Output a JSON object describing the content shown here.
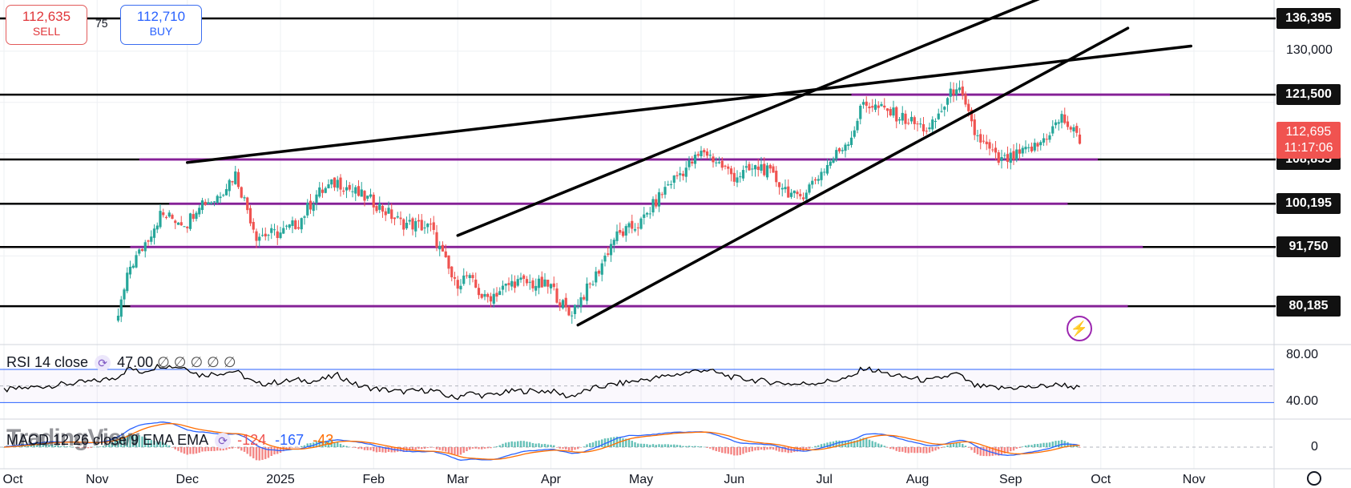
{
  "trade": {
    "sell_price": "112,635",
    "sell_label": "SELL",
    "buy_price": "112,710",
    "buy_label": "BUY",
    "spread": "75"
  },
  "price_tags": [
    {
      "value": "136,395",
      "price": 136395
    },
    {
      "value": "121,500",
      "price": 121500
    },
    {
      "value": "108,855",
      "price": 108855
    },
    {
      "value": "100,195",
      "price": 100195
    },
    {
      "value": "91,750",
      "price": 91750
    },
    {
      "value": "80,185",
      "price": 80185
    }
  ],
  "current_price": {
    "value": "112,695",
    "countdown": "11:17:06",
    "price": 112695
  },
  "price_axis_labels": [
    {
      "text": "130,000",
      "price": 130000
    }
  ],
  "rsi": {
    "legend_name": "RSI 14 close",
    "legend_value": "47.00",
    "legend_extra": "∅ ∅ ∅ ∅ ∅",
    "axis_labels": [
      "80.00",
      "40.00"
    ]
  },
  "macd": {
    "legend_name": "MACD 12 26 close 9 EMA EMA",
    "hist_value": "-124",
    "macd_value": "-167",
    "signal_value": "-43",
    "axis_label": "0"
  },
  "watermark": "TradingView",
  "colors": {
    "up": "#26a69a",
    "down": "#ef5350",
    "purple": "#9c27b0",
    "macd": "#2962ff",
    "signal": "#ff6d00",
    "band": "#2962ff"
  },
  "icons": {
    "flash": "flash-icon",
    "settings": "gear-icon",
    "cycle": "cycle-icon"
  },
  "chart_data": {
    "type": "candlestick",
    "title": "",
    "x": [
      "2024-10-01",
      "2024-10-15",
      "2024-11-01",
      "2024-11-07",
      "2024-11-12",
      "2024-11-15",
      "2024-11-22",
      "2024-12-01",
      "2024-12-05",
      "2024-12-10",
      "2024-12-17",
      "2024-12-24",
      "2025-01-01",
      "2025-01-07",
      "2025-01-13",
      "2025-01-20",
      "2025-01-27",
      "2025-02-01",
      "2025-02-10",
      "2025-02-20",
      "2025-02-28",
      "2025-03-04",
      "2025-03-10",
      "2025-03-20",
      "2025-04-01",
      "2025-04-07",
      "2025-04-15",
      "2025-04-22",
      "2025-05-01",
      "2025-05-10",
      "2025-05-22",
      "2025-06-01",
      "2025-06-10",
      "2025-06-22",
      "2025-07-01",
      "2025-07-10",
      "2025-07-14",
      "2025-07-25",
      "2025-08-05",
      "2025-08-14",
      "2025-08-20",
      "2025-08-28",
      "2025-09-01",
      "2025-09-10",
      "2025-09-18",
      "2025-09-24"
    ],
    "close": [
      62000,
      66000,
      69000,
      76000,
      88000,
      90500,
      98000,
      96500,
      100500,
      101000,
      106000,
      94000,
      94500,
      96500,
      102000,
      104500,
      102000,
      100500,
      96500,
      95500,
      84500,
      86000,
      81500,
      85000,
      84000,
      78500,
      85000,
      93500,
      96500,
      104000,
      110500,
      105500,
      107500,
      101000,
      107000,
      113500,
      120000,
      117500,
      114500,
      123500,
      114000,
      108500,
      109000,
      111500,
      117000,
      112700
    ],
    "rsi": [
      45,
      50,
      56,
      60,
      72,
      66,
      75,
      72,
      63,
      65,
      68,
      52,
      55,
      57,
      56,
      63,
      50,
      47,
      43,
      45,
      35,
      42,
      38,
      44,
      44,
      37,
      47,
      52,
      57,
      62,
      70,
      60,
      56,
      52,
      55,
      60,
      72,
      62,
      56,
      65,
      50,
      47,
      48,
      49,
      52,
      47
    ],
    "price_axis": {
      "min": 73000,
      "max": 140000,
      "labels": [
        130000
      ]
    },
    "rsi_axis": {
      "min": 10,
      "max": 100,
      "labels": [
        80,
        40
      ],
      "band": [
        30,
        70
      ]
    },
    "months": [
      {
        "label": "Oct",
        "date": "2024-10-01"
      },
      {
        "label": "Nov",
        "date": "2024-11-01"
      },
      {
        "label": "Dec",
        "date": "2024-12-01"
      },
      {
        "label": "2025",
        "date": "2025-01-01"
      },
      {
        "label": "Feb",
        "date": "2025-02-01"
      },
      {
        "label": "Mar",
        "date": "2025-03-01"
      },
      {
        "label": "Apr",
        "date": "2025-04-01"
      },
      {
        "label": "May",
        "date": "2025-05-01"
      },
      {
        "label": "Jun",
        "date": "2025-06-01"
      },
      {
        "label": "Jul",
        "date": "2025-07-01"
      },
      {
        "label": "Aug",
        "date": "2025-08-01"
      },
      {
        "label": "Sep",
        "date": "2025-09-01"
      },
      {
        "label": "Oct",
        "date": "2025-10-01"
      },
      {
        "label": "Nov",
        "date": "2025-11-01"
      }
    ],
    "support_lines": [
      {
        "price": 108855,
        "from": "2024-11-15",
        "to": "2025-09-30"
      },
      {
        "price": 100195,
        "from": "2024-11-25",
        "to": "2025-09-20"
      },
      {
        "price": 91750,
        "from": "2024-11-12",
        "to": "2025-10-15"
      },
      {
        "price": 80185,
        "from": "2024-11-12",
        "to": "2025-10-10"
      },
      {
        "price": 121500,
        "from": "2025-07-10",
        "to": "2025-10-24"
      }
    ],
    "trend_lines": [
      {
        "from": [
          "2024-12-01",
          108250
        ],
        "to": [
          "2025-10-31",
          131000
        ]
      },
      {
        "from": [
          "2025-03-01",
          94000
        ],
        "to": [
          "2025-09-20",
          142500
        ]
      },
      {
        "from": [
          "2025-04-10",
          76500
        ],
        "to": [
          "2025-10-10",
          134500
        ]
      }
    ],
    "grid": true
  }
}
